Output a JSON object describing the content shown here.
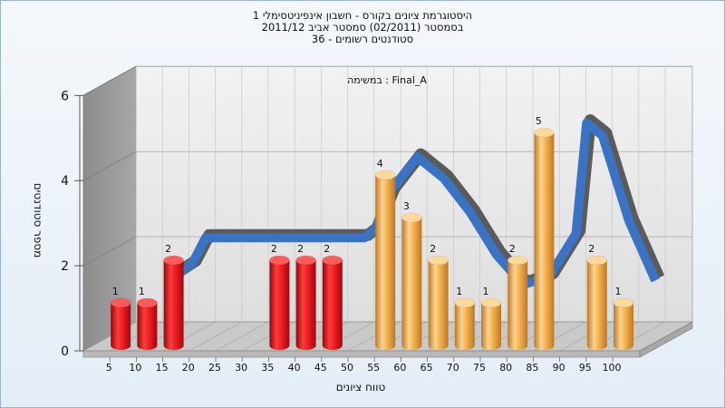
{
  "titles": [
    "היסטוגרמת ציונים בקורס - חשבון אינפיניטסימלי 1",
    "בסמסטר  (02/2011)  סמסטר אביב 2011/12",
    "סטודנטים רשומים - 36"
  ],
  "chart_data": {
    "type": "bar",
    "subtitle": "במשימה : Final_A",
    "xlabel": "טווח ציונים",
    "ylabel": "מספר סטודנטים",
    "ylim": [
      0,
      6
    ],
    "yticks": [
      0,
      2,
      4,
      6
    ],
    "categories": [
      "5",
      "10",
      "15",
      "20",
      "25",
      "30",
      "35",
      "40",
      "45",
      "50",
      "55",
      "60",
      "65",
      "70",
      "75",
      "80",
      "85",
      "90",
      "95",
      "100"
    ],
    "values": [
      1,
      1,
      2,
      0,
      0,
      0,
      2,
      2,
      2,
      0,
      4,
      3,
      2,
      1,
      1,
      2,
      5,
      0,
      2,
      1
    ],
    "bar_colors": [
      "red",
      "red",
      "red",
      "red",
      "red",
      "red",
      "red",
      "red",
      "red",
      "red",
      "orange",
      "orange",
      "orange",
      "orange",
      "orange",
      "orange",
      "orange",
      "orange",
      "orange",
      "orange"
    ],
    "trend_line": {
      "x": [
        12.5,
        17.5,
        20,
        25,
        30,
        35,
        40,
        45,
        50,
        52,
        55,
        60,
        65,
        70,
        75,
        80,
        85,
        90,
        92,
        95,
        100,
        105
      ],
      "y": [
        1.4,
        1.8,
        2.4,
        2.4,
        2.4,
        2.4,
        2.4,
        2.4,
        2.4,
        2.6,
        3.5,
        4.3,
        3.8,
        3.0,
        2.0,
        1.3,
        1.5,
        2.5,
        5.1,
        4.8,
        2.8,
        1.4
      ]
    },
    "grid": true,
    "colors": {
      "red": "#e0141a",
      "orange": "#e8a23c",
      "trend_primary": "#3a73c4",
      "trend_shadow": "#5b5b5b"
    }
  }
}
